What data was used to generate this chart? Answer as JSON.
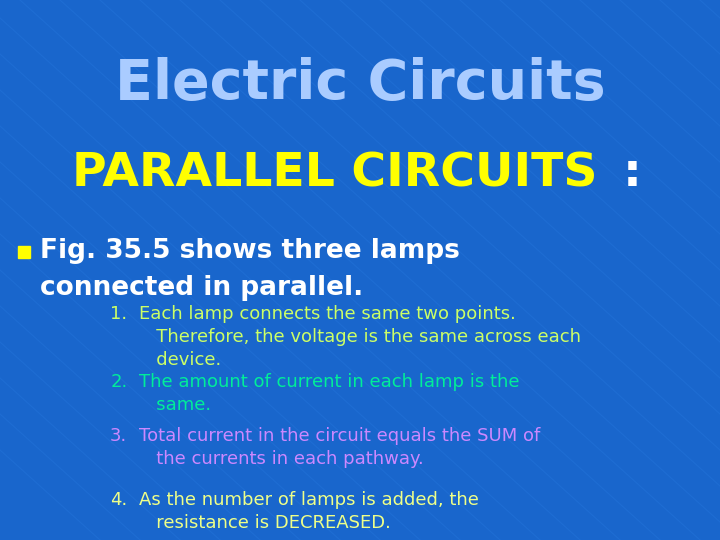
{
  "title": "Electric Circuits",
  "title_color": "#aaccff",
  "subtitle_yellow": "PARALLEL CIRCUITS",
  "subtitle_colon": ":",
  "subtitle_yellow_color": "#ffff00",
  "subtitle_colon_color": "#ffffff",
  "bg_color": "#1966cc",
  "bullet_text_line1": "Fig. 35.5 shows three lamps",
  "bullet_text_line2": "connected in parallel.",
  "bullet_color": "#ffffff",
  "bullet_marker_color": "#ffff00",
  "item1_num": "1.",
  "item1_text": "Each lamp connects the same two points.\n   Therefore, the voltage is the same across each\n   device.",
  "item1_color": "#ccff66",
  "item2_num": "2.",
  "item2_text": "The amount of current in each lamp is the\n   same.",
  "item2_color": "#00ee99",
  "item3_num": "3.",
  "item3_text": "Total current in the circuit equals the SUM of\n   the currents in each pathway.",
  "item3_color": "#cc88ff",
  "item4_num": "4.",
  "item4_text": "As the number of lamps is added, the\n   resistance is DECREASED.",
  "item4_color": "#eeff88",
  "grid_color": "#3388ee",
  "grid_alpha": 0.2
}
